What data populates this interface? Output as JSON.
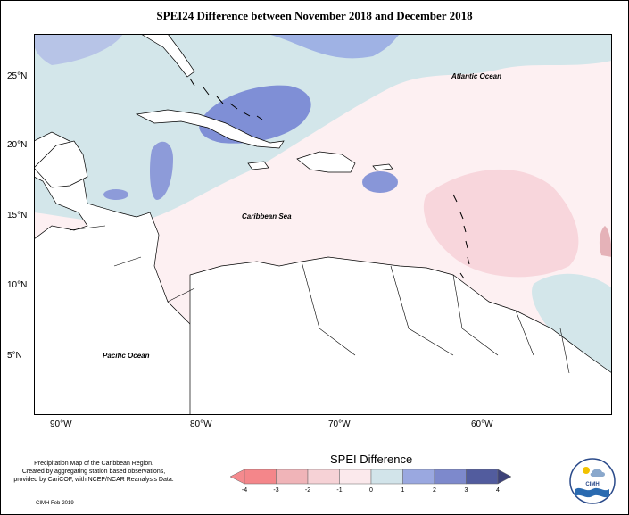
{
  "title": "SPEI24 Difference between November 2018 and December 2018",
  "axes": {
    "lat_labels": [
      "25°N",
      "20°N",
      "15°N",
      "10°N",
      "5°N"
    ],
    "lon_labels": [
      "90°W",
      "80°W",
      "70°W",
      "60°W"
    ]
  },
  "map_labels": {
    "atlantic": "Atlantic Ocean",
    "caribbean": "Caribbean Sea",
    "pacific": "Pacific Ocean"
  },
  "legend": {
    "title": "SPEI Difference",
    "ticks": [
      "-4",
      "-3",
      "-2",
      "-1",
      "0",
      "1",
      "2",
      "3",
      "4"
    ],
    "colors": [
      "#f4868a",
      "#f0b4b8",
      "#f6d2d6",
      "#fbe9ec",
      "#d2e4ea",
      "#9aa8e0",
      "#7d89cc",
      "#525c9e"
    ]
  },
  "footer": {
    "line1": "Precipitation Map of the Caribbean Region.",
    "line2": "Created by aggregating station based observations,",
    "line3": "provided by CariCOF, with NCEP/NCAR Reanalysis Data.",
    "credit": "CIMH Feb-2019"
  },
  "logo": {
    "text": "CIMH"
  }
}
